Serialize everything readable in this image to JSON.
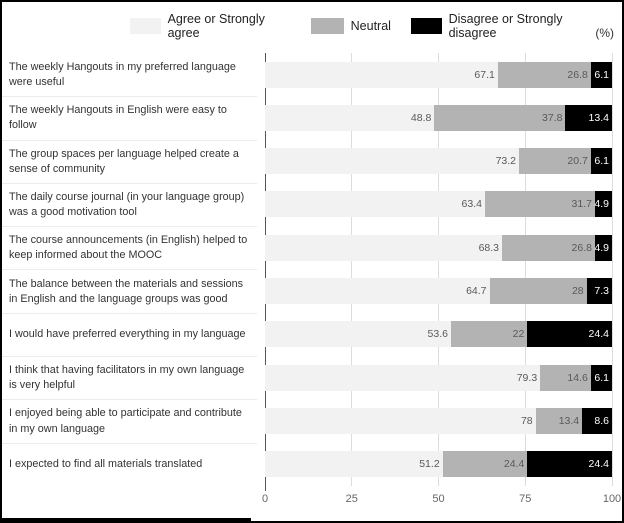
{
  "legend": [
    {
      "label": "Agree or Strongly agree",
      "color": "#f2f2f2"
    },
    {
      "label": "Neutral",
      "color": "#b3b3b3"
    },
    {
      "label": "Disagree or Strongly disagree",
      "color": "#000000"
    }
  ],
  "unit_label": "(%)",
  "chart_data": {
    "type": "bar",
    "orientation": "horizontal",
    "stacked": true,
    "title": "",
    "xlabel": "(%)",
    "ylabel": "",
    "xlim": [
      0,
      100
    ],
    "xticks": [
      0,
      25,
      50,
      75,
      100
    ],
    "grid": true,
    "legend_position": "top",
    "categories": [
      "The weekly Hangouts in my preferred language were useful",
      "The weekly Hangouts in English were easy to follow",
      "The group spaces per language helped create a sense of community",
      "The daily course journal (in your language group) was a good motivation tool",
      "The course announcements (in English) helped to keep informed about the MOOC",
      "The balance between the materials and sessions in English and the language groups was good",
      "I would have preferred everything in my language",
      "I think that having facilitators in my own language is very helpful",
      "I enjoyed being able to participate and contribute in my own language",
      "I expected to find all materials translated"
    ],
    "series": [
      {
        "name": "Agree or Strongly agree",
        "color": "#f2f2f2",
        "values": [
          67.1,
          48.8,
          73.2,
          63.4,
          68.3,
          64.7,
          53.6,
          79.3,
          78,
          51.2
        ]
      },
      {
        "name": "Neutral",
        "color": "#b3b3b3",
        "values": [
          26.8,
          37.8,
          20.7,
          31.7,
          26.8,
          28,
          22,
          14.6,
          13.4,
          24.4
        ]
      },
      {
        "name": "Disagree or Strongly disagree",
        "color": "#000000",
        "values": [
          6.1,
          13.4,
          6.1,
          4.9,
          4.9,
          7.3,
          24.4,
          6.1,
          8.6,
          24.4
        ]
      }
    ]
  }
}
